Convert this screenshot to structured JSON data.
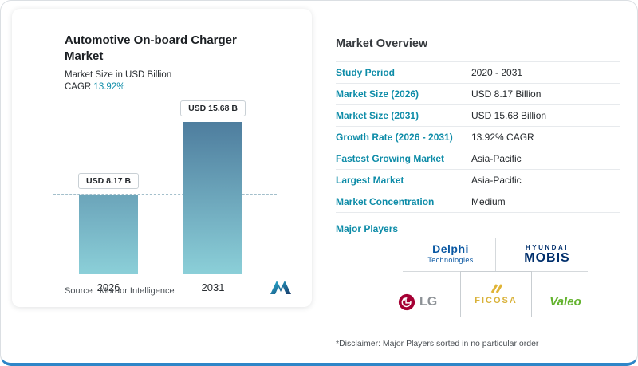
{
  "left_card": {
    "title": "Automotive On-board Charger Market",
    "subtitle": "Market Size in USD Billion",
    "cagr_label": "CAGR ",
    "cagr_value": "13.92%",
    "source_label": "Source :  Mordor Intelligence"
  },
  "chart_data": {
    "type": "bar",
    "title": "Automotive On-board Charger Market",
    "ylabel": "Market Size in USD Billion",
    "categories": [
      "2026",
      "2031"
    ],
    "values": [
      8.17,
      15.68
    ],
    "bar_labels": [
      "USD 8.17 B",
      "USD 15.68 B"
    ],
    "unit": "USD Billion",
    "cagr": "13.92%",
    "reference_line": 8.17,
    "ylim": [
      0,
      15.68
    ],
    "grid": false,
    "legend": "none"
  },
  "overview": {
    "title": "Market Overview",
    "rows": [
      {
        "label": "Study Period",
        "value": "2020 - 2031"
      },
      {
        "label": "Market Size (2026)",
        "value": "USD 8.17 Billion"
      },
      {
        "label": "Market Size (2031)",
        "value": "USD 15.68 Billion"
      },
      {
        "label": "Growth Rate (2026 - 2031)",
        "value": "13.92% CAGR"
      },
      {
        "label": "Fastest Growing Market",
        "value": "Asia-Pacific"
      },
      {
        "label": "Largest Market",
        "value": "Asia-Pacific"
      },
      {
        "label": "Market Concentration",
        "value": "Medium"
      }
    ],
    "major_players_label": "Major Players",
    "players": {
      "delphi": {
        "line1": "Delphi",
        "line2": "Technologies"
      },
      "mobis": {
        "line1": "HYUNDAI",
        "line2": "MOBIS"
      },
      "lg": {
        "text": "LG"
      },
      "ficosa": {
        "text": "FICOSA"
      },
      "valeo": {
        "text": "Valeo"
      }
    },
    "disclaimer": "*Disclaimer: Major Players sorted in no particular order"
  },
  "colors": {
    "accent_teal": "#0e8ca8",
    "bar_gradient_top": "#4e7d9e",
    "bar_gradient_bottom": "#8bcfd8",
    "bottom_edge_blue": "#2e86c8",
    "delphi_blue": "#0a58a3",
    "mobis_navy": "#002f6c",
    "lg_red": "#a50034",
    "ficosa_gold": "#d9b23a",
    "valeo_green": "#63b32e"
  }
}
